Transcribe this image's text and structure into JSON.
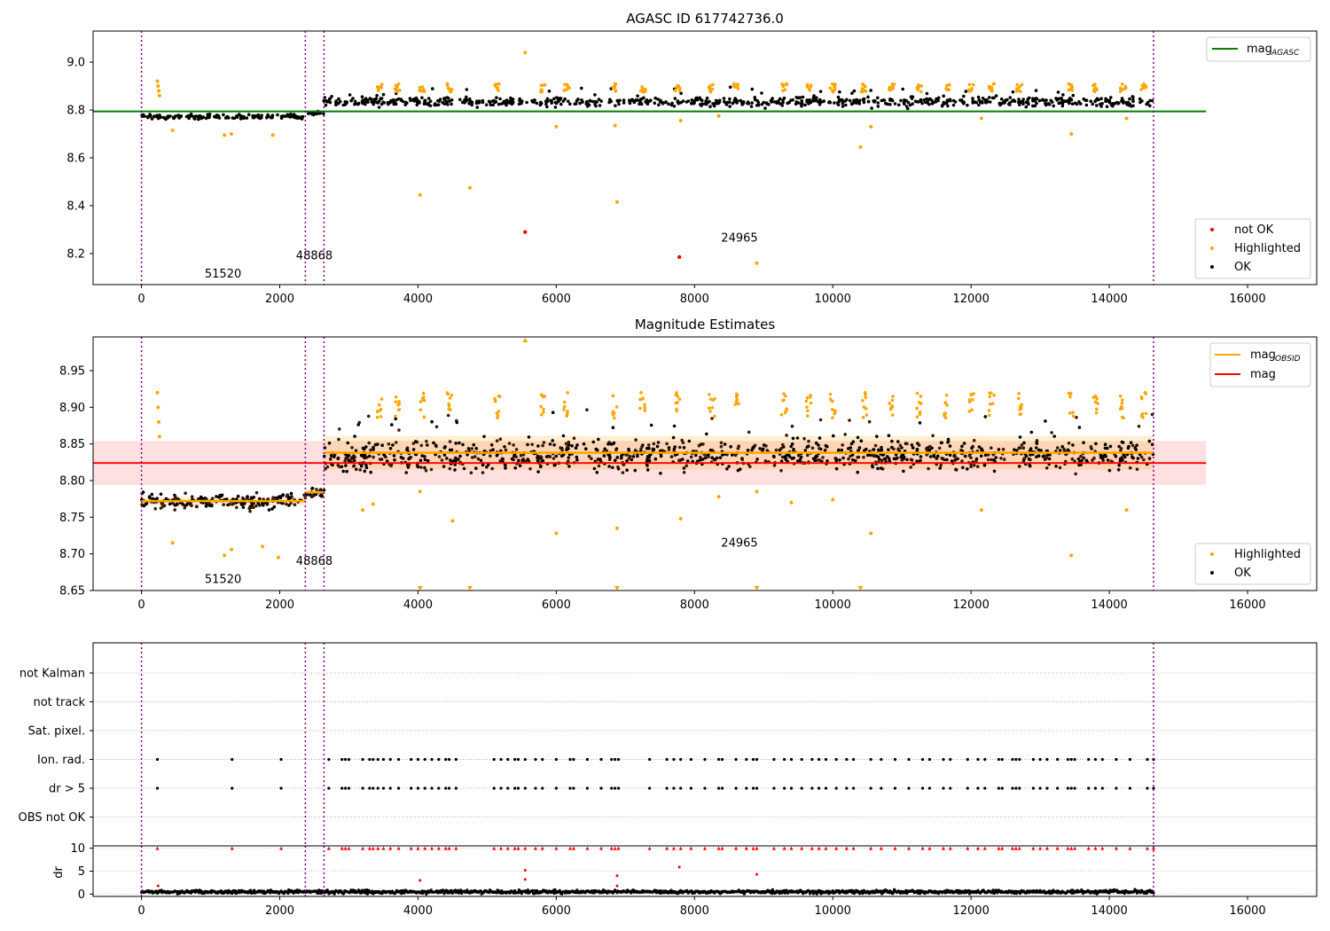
{
  "chart_data": [
    {
      "type": "scatter",
      "title": "AGASC ID 617742736.0",
      "xlim": [
        -700,
        17000
      ],
      "ylim": [
        8.07,
        9.13
      ],
      "x_ticks": [
        0,
        2000,
        4000,
        6000,
        8000,
        10000,
        12000,
        14000,
        16000
      ],
      "x_tick_labels": [
        "0",
        "2000",
        "4000",
        "6000",
        "8000",
        "10000",
        "12000",
        "14000",
        "16000"
      ],
      "y_ticks": [
        8.2,
        8.4,
        8.6,
        8.8,
        9.0
      ],
      "y_tick_labels": [
        "8.2",
        "8.4",
        "8.6",
        "8.8",
        "9.0"
      ],
      "vlines": [
        0,
        2370,
        2640,
        14640
      ],
      "hline": {
        "name": "mag_AGASC",
        "y": 8.794,
        "x_range": [
          -700,
          15400
        ],
        "color": "#008000"
      },
      "segments": [
        {
          "x_range": [
            0,
            2370
          ],
          "base": 8.772,
          "spread": 0.012
        },
        {
          "x_range": [
            2370,
            2640
          ],
          "base": 8.786,
          "spread": 0.01
        },
        {
          "x_range": [
            2640,
            14640
          ],
          "base": 8.834,
          "spread": 0.022
        }
      ],
      "highlighted_points": [
        {
          "x": 5550,
          "y": 9.04
        },
        {
          "x": 4030,
          "y": 8.445
        },
        {
          "x": 4750,
          "y": 8.475
        },
        {
          "x": 6880,
          "y": 8.415
        },
        {
          "x": 10400,
          "y": 8.645
        },
        {
          "x": 8900,
          "y": 8.16
        },
        {
          "x": 13450,
          "y": 8.7
        },
        {
          "x": 10550,
          "y": 8.73
        },
        {
          "x": 7800,
          "y": 8.755
        },
        {
          "x": 6850,
          "y": 8.735
        },
        {
          "x": 6000,
          "y": 8.73
        },
        {
          "x": 8350,
          "y": 8.775
        },
        {
          "x": 12150,
          "y": 8.765
        },
        {
          "x": 14250,
          "y": 8.765
        },
        {
          "x": 1300,
          "y": 8.7
        },
        {
          "x": 1200,
          "y": 8.695
        },
        {
          "x": 1900,
          "y": 8.695
        },
        {
          "x": 450,
          "y": 8.715
        },
        {
          "x": 230,
          "y": 8.92
        },
        {
          "x": 240,
          "y": 8.9
        },
        {
          "x": 250,
          "y": 8.88
        },
        {
          "x": 260,
          "y": 8.86
        }
      ],
      "notok_points": [
        {
          "x": 5550,
          "y": 8.29
        },
        {
          "x": 7780,
          "y": 8.185
        }
      ],
      "annotations": [
        {
          "text": "51520",
          "x": 1180,
          "y": 8.1
        },
        {
          "text": "48868",
          "x": 2500,
          "y": 8.175
        },
        {
          "text": "24965",
          "x": 8650,
          "y": 8.25
        }
      ],
      "legend_upper": [
        {
          "label": "mag",
          "subscript": "AGASC",
          "color": "#008000"
        }
      ],
      "legend_lower": [
        {
          "label": "not OK",
          "color": "#ff0000"
        },
        {
          "label": "Highlighted",
          "color": "#ffa500"
        },
        {
          "label": "OK",
          "color": "#000000"
        }
      ]
    },
    {
      "type": "scatter",
      "title": "Magnitude Estimates",
      "xlim": [
        -700,
        17000
      ],
      "ylim": [
        8.65,
        8.996
      ],
      "x_ticks": [
        0,
        2000,
        4000,
        6000,
        8000,
        10000,
        12000,
        14000,
        16000
      ],
      "x_tick_labels": [
        "0",
        "2000",
        "4000",
        "6000",
        "8000",
        "10000",
        "12000",
        "14000",
        "16000"
      ],
      "y_ticks": [
        8.65,
        8.7,
        8.75,
        8.8,
        8.85,
        8.9,
        8.95
      ],
      "y_tick_labels": [
        "8.65",
        "8.70",
        "8.75",
        "8.80",
        "8.85",
        "8.90",
        "8.95"
      ],
      "vlines": [
        0,
        2370,
        2640,
        14640
      ],
      "mag_line": {
        "name": "mag",
        "y": 8.824,
        "band": [
          8.794,
          8.854
        ],
        "x_range": [
          -700,
          15400
        ],
        "color": "#ff0000"
      },
      "obsid_mags": [
        {
          "x_range": [
            0,
            2370
          ],
          "y": 8.772,
          "band": [
            8.766,
            8.778
          ]
        },
        {
          "x_range": [
            2370,
            2640
          ],
          "y": 8.784,
          "band": [
            8.779,
            8.789
          ]
        },
        {
          "x_range": [
            2640,
            14640
          ],
          "y": 8.838,
          "band": [
            8.815,
            8.861
          ]
        }
      ],
      "segments": [
        {
          "x_range": [
            0,
            2370
          ],
          "base": 8.772,
          "spread": 0.012
        },
        {
          "x_range": [
            2370,
            2640
          ],
          "base": 8.786,
          "spread": 0.01
        },
        {
          "x_range": [
            2640,
            14640
          ],
          "base": 8.834,
          "spread": 0.024
        }
      ],
      "highlighted_points": [
        {
          "x": 6880,
          "y": 8.735
        },
        {
          "x": 6000,
          "y": 8.728
        },
        {
          "x": 7800,
          "y": 8.748
        },
        {
          "x": 8350,
          "y": 8.778
        },
        {
          "x": 8900,
          "y": 8.785
        },
        {
          "x": 9400,
          "y": 8.77
        },
        {
          "x": 10000,
          "y": 8.774
        },
        {
          "x": 10550,
          "y": 8.728
        },
        {
          "x": 12150,
          "y": 8.76
        },
        {
          "x": 14250,
          "y": 8.76
        },
        {
          "x": 13450,
          "y": 8.698
        },
        {
          "x": 4030,
          "y": 8.785
        },
        {
          "x": 4500,
          "y": 8.745
        },
        {
          "x": 1300,
          "y": 8.706
        },
        {
          "x": 1200,
          "y": 8.698
        },
        {
          "x": 1750,
          "y": 8.71
        },
        {
          "x": 1980,
          "y": 8.695
        },
        {
          "x": 450,
          "y": 8.715
        },
        {
          "x": 3200,
          "y": 8.76
        },
        {
          "x": 3350,
          "y": 8.768
        },
        {
          "x": 230,
          "y": 8.92
        },
        {
          "x": 240,
          "y": 8.9
        },
        {
          "x": 250,
          "y": 8.88
        },
        {
          "x": 260,
          "y": 8.86
        }
      ],
      "offscale_markers": [
        {
          "x": 5550,
          "dir": "up"
        },
        {
          "x": 4030,
          "dir": "down"
        },
        {
          "x": 4750,
          "dir": "down"
        },
        {
          "x": 6880,
          "dir": "down"
        },
        {
          "x": 8900,
          "dir": "down"
        },
        {
          "x": 10400,
          "dir": "down"
        }
      ],
      "annotations": [
        {
          "text": "51520",
          "x": 1180,
          "y": 8.66
        },
        {
          "text": "48868",
          "x": 2500,
          "y": 8.685
        },
        {
          "text": "24965",
          "x": 8650,
          "y": 8.71
        }
      ],
      "legend_upper": [
        {
          "label": "mag",
          "subscript": "OBSID",
          "color": "#ffa500"
        },
        {
          "label": "mag",
          "subscript": "",
          "color": "#ff0000"
        }
      ],
      "legend_lower": [
        {
          "label": "Highlighted",
          "color": "#ffa500"
        },
        {
          "label": "OK",
          "color": "#000000"
        }
      ]
    },
    {
      "type": "scatter",
      "title": "",
      "xlim": [
        -700,
        17000
      ],
      "flag_rows": [
        "not Kalman",
        "not track",
        "Sat. pixel.",
        "Ion. rad.",
        "dr > 5",
        "OBS not OK"
      ],
      "flag_x": [
        230,
        1310,
        2020,
        2710,
        2900,
        2950,
        3000,
        3200,
        3300,
        3350,
        3420,
        3500,
        3600,
        3720,
        3900,
        4000,
        4100,
        4200,
        4300,
        4400,
        4450,
        4550,
        5100,
        5200,
        5300,
        5400,
        5450,
        5550,
        5700,
        5800,
        6000,
        6200,
        6250,
        6450,
        6650,
        6800,
        6850,
        6900,
        7350,
        7600,
        7700,
        7800,
        7950,
        8150,
        8350,
        8400,
        8600,
        8750,
        8850,
        8900,
        9150,
        9300,
        9400,
        9550,
        9700,
        9800,
        9900,
        10050,
        10200,
        10300,
        10550,
        10700,
        10900,
        11100,
        11300,
        11400,
        11600,
        11700,
        11950,
        12100,
        12200,
        12400,
        12450,
        12600,
        12650,
        12700,
        12900,
        13000,
        13100,
        13250,
        13400,
        13450,
        13500,
        13700,
        13800,
        13900,
        14100,
        14300,
        14550,
        14640
      ],
      "flag_rows_marked": [
        "Ion. rad.",
        "dr > 5"
      ],
      "vlines": [
        0,
        2370,
        2640,
        14640
      ],
      "dr_axis": {
        "ylabel": "dr",
        "ylim": [
          -0.5,
          10.5
        ],
        "y_ticks": [
          0,
          5,
          10
        ],
        "y_tick_labels": [
          "0",
          "5",
          "10"
        ],
        "x_ticks": [
          0,
          2000,
          4000,
          6000,
          8000,
          10000,
          12000,
          14000,
          16000
        ],
        "x_tick_labels": [
          "0",
          "2000",
          "4000",
          "6000",
          "8000",
          "10000",
          "12000",
          "14000",
          "16000"
        ],
        "cap": 10,
        "mid_points": [
          {
            "x": 4030,
            "y": 3.0
          },
          {
            "x": 5550,
            "y": 5.2
          },
          {
            "x": 5550,
            "y": 3.2
          },
          {
            "x": 6880,
            "y": 4.0
          },
          {
            "x": 6880,
            "y": 1.8
          },
          {
            "x": 7780,
            "y": 5.9
          },
          {
            "x": 8900,
            "y": 4.3
          },
          {
            "x": 240,
            "y": 1.8
          }
        ]
      }
    }
  ]
}
